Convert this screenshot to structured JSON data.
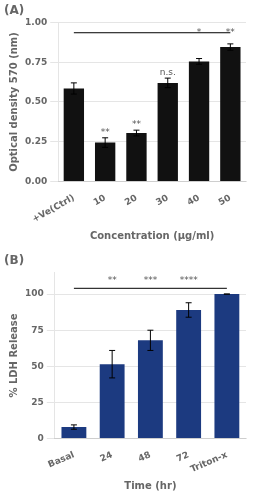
{
  "chart_data": [
    {
      "type": "bar",
      "title": "(A)",
      "categories": [
        "+Ve(Ctrl)",
        "10",
        "20",
        "30",
        "40",
        "50"
      ],
      "values": [
        0.585,
        0.245,
        0.305,
        0.62,
        0.755,
        0.845
      ],
      "errors": [
        0.035,
        0.03,
        0.018,
        0.03,
        0.018,
        0.02
      ],
      "color": "#111111",
      "ylabel": "Optical density 570 (nm)",
      "xlabel": "Concentration (μg/ml)",
      "ylim": [
        0.0,
        1.0
      ],
      "yticks": [
        {
          "value": 0,
          "label": "0.00"
        },
        0.25,
        {
          "value": 0.5,
          "label": "0.50"
        },
        0.75,
        {
          "value": 1.0,
          "label": "1.00"
        }
      ],
      "annotations": [
        {
          "text": "**",
          "x": "10",
          "y": 0.28
        },
        {
          "text": "**",
          "x": "20",
          "y": 0.328
        },
        {
          "text": "n.s.",
          "x": "30",
          "y": 0.655
        },
        {
          "text": "*",
          "x": "40",
          "y": 0.91
        },
        {
          "text": "**",
          "x": "50",
          "y": 0.91
        }
      ],
      "bracket": {
        "x1": "+Ve(Ctrl)",
        "x2": "50",
        "y": 0.935
      }
    },
    {
      "type": "bar",
      "title": "(B)",
      "categories": [
        "Basal",
        "24",
        "48",
        "72",
        "Triton-x"
      ],
      "values": [
        8.0,
        51.5,
        68.0,
        89.0,
        100.0
      ],
      "errors": [
        1.5,
        9.5,
        7.0,
        5.0,
        0.0
      ],
      "color": "#1c3a80",
      "ylabel": "% LDH Release",
      "xlabel": "Time (hr)",
      "ylim": [
        0,
        115
      ],
      "yticks": [
        0,
        25,
        50,
        75,
        100
      ],
      "annotations": [
        {
          "text": "**",
          "x": "24",
          "y": 106
        },
        {
          "text": "***",
          "x": "48",
          "y": 106
        },
        {
          "text": "****",
          "x": "72",
          "y": 106
        }
      ],
      "bracket": {
        "x1": "Basal",
        "x2": "Triton-x",
        "y": 104
      }
    }
  ]
}
